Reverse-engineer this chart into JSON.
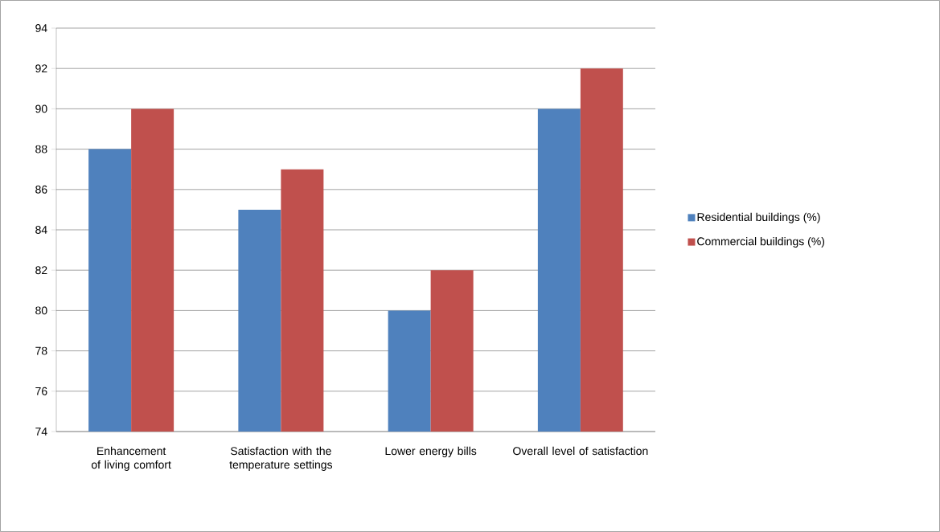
{
  "chart_data": {
    "type": "bar",
    "categories": [
      "Enhancement of living comfort",
      "Satisfaction with the temperature settings",
      "Lower energy bills",
      "Overall level of satisfaction"
    ],
    "series": [
      {
        "name": "Residential buildings (%)",
        "color": "#4f81bd",
        "values": [
          88,
          85,
          80,
          90
        ]
      },
      {
        "name": "Commercial buildings (%)",
        "color": "#c0504d",
        "values": [
          90,
          87,
          82,
          92
        ]
      }
    ],
    "ylim": [
      74,
      94
    ],
    "yticks": [
      74,
      76,
      78,
      80,
      82,
      84,
      86,
      88,
      90,
      92,
      94
    ],
    "grid": "y",
    "legend": "right"
  }
}
